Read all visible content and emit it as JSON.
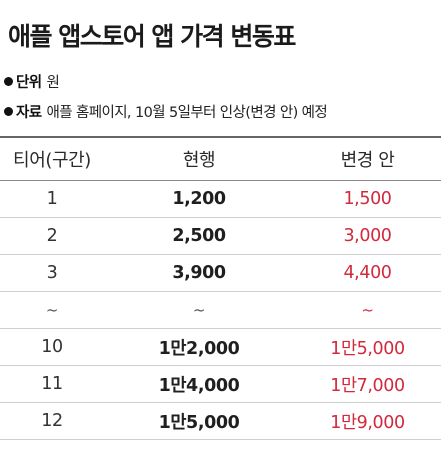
{
  "title": "애플 앱스토어 앱 가격 변동표",
  "unit": {
    "label": "단위",
    "value": "원"
  },
  "source": {
    "label": "자료",
    "value": "애플 홈페이지, 10월 5일부터 인상(변경 안) 예정"
  },
  "table": {
    "headers": [
      "티어(구간)",
      "현행",
      "변경 안"
    ],
    "rows": [
      {
        "tier": "1",
        "current": "1,200",
        "changed": "1,500"
      },
      {
        "tier": "2",
        "current": "2,500",
        "changed": "3,000"
      },
      {
        "tier": "3",
        "current": "3,900",
        "changed": "4,400"
      },
      {
        "tier": "~",
        "current": "~",
        "changed": "~"
      },
      {
        "tier": "10",
        "current": "1만2,000",
        "changed": "1만5,000"
      },
      {
        "tier": "11",
        "current": "1만4,000",
        "changed": "1만7,000"
      },
      {
        "tier": "12",
        "current": "1만5,000",
        "changed": "1만9,000"
      }
    ]
  },
  "colors": {
    "changed_value": "#d2293d",
    "text": "#1a1a1a"
  }
}
